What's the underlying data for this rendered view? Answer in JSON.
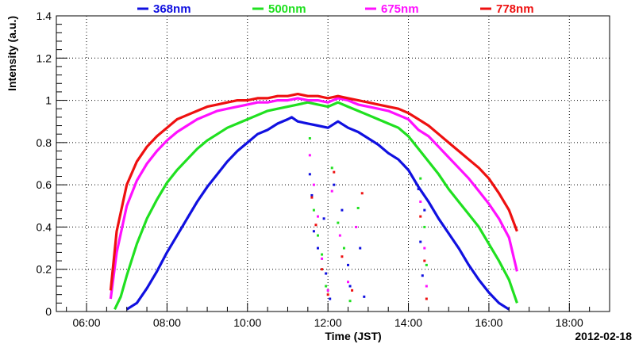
{
  "chart_data": {
    "type": "line",
    "title": "",
    "xlabel": "Time (JST)",
    "ylabel": "Intensity (a.u.)",
    "date_label": "2012-02-18",
    "xlim": [
      5.25,
      19.0
    ],
    "ylim": [
      0,
      1.4
    ],
    "xticks": [
      6,
      8,
      10,
      12,
      14,
      16,
      18
    ],
    "xtick_labels": [
      "06:00",
      "08:00",
      "10:00",
      "12:00",
      "14:00",
      "16:00",
      "18:00"
    ],
    "yticks": [
      0,
      0.2,
      0.4,
      0.6,
      0.8,
      1,
      1.2,
      1.4
    ],
    "ytick_labels": [
      "0",
      "0.2",
      "0.4",
      "0.6",
      "0.8",
      "1",
      "1.2",
      "1.4"
    ],
    "grid": true,
    "legend_position": "top",
    "series": [
      {
        "name": "368nm",
        "color": "#1010e0",
        "x": [
          7.0,
          7.25,
          7.5,
          7.75,
          8.0,
          8.25,
          8.5,
          8.75,
          9.0,
          9.25,
          9.5,
          9.75,
          10.0,
          10.25,
          10.5,
          10.75,
          11.0,
          11.1,
          11.25,
          11.5,
          11.75,
          12.0,
          12.25,
          12.5,
          12.75,
          13.0,
          13.25,
          13.5,
          13.75,
          14.0,
          14.25,
          14.5,
          14.75,
          15.0,
          15.25,
          15.5,
          15.75,
          16.0,
          16.25,
          16.5
        ],
        "y": [
          0.01,
          0.04,
          0.11,
          0.19,
          0.28,
          0.36,
          0.44,
          0.52,
          0.59,
          0.65,
          0.71,
          0.76,
          0.8,
          0.84,
          0.86,
          0.89,
          0.91,
          0.92,
          0.9,
          0.89,
          0.88,
          0.87,
          0.9,
          0.87,
          0.85,
          0.82,
          0.79,
          0.75,
          0.72,
          0.67,
          0.59,
          0.52,
          0.44,
          0.37,
          0.3,
          0.22,
          0.15,
          0.09,
          0.04,
          0.01
        ]
      },
      {
        "name": "500nm",
        "color": "#20e020",
        "x": [
          6.7,
          6.85,
          7.0,
          7.25,
          7.5,
          7.75,
          8.0,
          8.25,
          8.5,
          8.75,
          9.0,
          9.25,
          9.5,
          9.75,
          10.0,
          10.25,
          10.5,
          10.75,
          11.0,
          11.25,
          11.5,
          11.75,
          12.0,
          12.25,
          12.5,
          12.75,
          13.0,
          13.25,
          13.5,
          13.75,
          14.0,
          14.25,
          14.5,
          14.75,
          15.0,
          15.25,
          15.5,
          15.75,
          16.0,
          16.25,
          16.5,
          16.7
        ],
        "y": [
          0.01,
          0.07,
          0.17,
          0.32,
          0.44,
          0.53,
          0.61,
          0.67,
          0.72,
          0.77,
          0.81,
          0.84,
          0.87,
          0.89,
          0.91,
          0.93,
          0.95,
          0.96,
          0.97,
          0.98,
          0.99,
          0.98,
          0.97,
          0.99,
          0.97,
          0.95,
          0.93,
          0.91,
          0.89,
          0.87,
          0.83,
          0.77,
          0.71,
          0.65,
          0.58,
          0.52,
          0.46,
          0.4,
          0.32,
          0.24,
          0.15,
          0.04
        ]
      },
      {
        "name": "675nm",
        "color": "#ff10ff",
        "x": [
          6.6,
          6.75,
          7.0,
          7.25,
          7.5,
          7.75,
          8.0,
          8.25,
          8.5,
          8.75,
          9.0,
          9.25,
          9.5,
          9.75,
          10.0,
          10.25,
          10.5,
          10.75,
          11.0,
          11.25,
          11.5,
          11.75,
          12.0,
          12.25,
          12.5,
          12.75,
          13.0,
          13.25,
          13.5,
          13.75,
          14.0,
          14.25,
          14.5,
          14.75,
          15.0,
          15.25,
          15.5,
          15.75,
          16.0,
          16.25,
          16.5,
          16.7
        ],
        "y": [
          0.06,
          0.28,
          0.5,
          0.62,
          0.7,
          0.76,
          0.81,
          0.85,
          0.88,
          0.91,
          0.93,
          0.95,
          0.96,
          0.97,
          0.98,
          0.99,
          0.99,
          1.0,
          1.0,
          1.01,
          1.0,
          1.0,
          0.99,
          1.01,
          1.0,
          0.98,
          0.97,
          0.96,
          0.95,
          0.93,
          0.91,
          0.86,
          0.83,
          0.78,
          0.73,
          0.68,
          0.63,
          0.57,
          0.51,
          0.44,
          0.35,
          0.19
        ]
      },
      {
        "name": "778nm",
        "color": "#ee1010",
        "x": [
          6.6,
          6.75,
          7.0,
          7.25,
          7.5,
          7.75,
          8.0,
          8.25,
          8.5,
          8.75,
          9.0,
          9.25,
          9.5,
          9.75,
          10.0,
          10.25,
          10.5,
          10.75,
          11.0,
          11.25,
          11.5,
          11.75,
          12.0,
          12.25,
          12.5,
          12.75,
          13.0,
          13.25,
          13.5,
          13.75,
          14.0,
          14.25,
          14.5,
          14.75,
          15.0,
          15.25,
          15.5,
          15.75,
          16.0,
          16.25,
          16.5,
          16.7
        ],
        "y": [
          0.1,
          0.38,
          0.6,
          0.71,
          0.78,
          0.83,
          0.87,
          0.91,
          0.93,
          0.95,
          0.97,
          0.98,
          0.99,
          1.0,
          1.0,
          1.01,
          1.01,
          1.02,
          1.02,
          1.03,
          1.02,
          1.02,
          1.01,
          1.02,
          1.01,
          1.0,
          0.99,
          0.98,
          0.97,
          0.96,
          0.94,
          0.91,
          0.88,
          0.84,
          0.8,
          0.76,
          0.72,
          0.68,
          0.63,
          0.56,
          0.48,
          0.38
        ]
      }
    ],
    "scatter_dropouts": {
      "368nm": [
        [
          11.55,
          0.65
        ],
        [
          11.6,
          0.55
        ],
        [
          11.65,
          0.38
        ],
        [
          11.75,
          0.3
        ],
        [
          11.9,
          0.44
        ],
        [
          11.95,
          0.18
        ],
        [
          12.05,
          0.06
        ],
        [
          12.15,
          0.6
        ],
        [
          12.35,
          0.48
        ],
        [
          12.5,
          0.22
        ],
        [
          12.55,
          0.12
        ],
        [
          12.8,
          0.3
        ],
        [
          12.9,
          0.07
        ],
        [
          14.25,
          0.58
        ],
        [
          14.3,
          0.33
        ],
        [
          14.35,
          0.17
        ],
        [
          14.4,
          0.48
        ]
      ],
      "500nm": [
        [
          11.55,
          0.82
        ],
        [
          11.65,
          0.48
        ],
        [
          11.75,
          0.36
        ],
        [
          11.85,
          0.27
        ],
        [
          11.95,
          0.12
        ],
        [
          12.1,
          0.68
        ],
        [
          12.25,
          0.42
        ],
        [
          12.4,
          0.3
        ],
        [
          12.55,
          0.05
        ],
        [
          12.75,
          0.49
        ],
        [
          14.3,
          0.63
        ],
        [
          14.4,
          0.4
        ],
        [
          14.45,
          0.22
        ]
      ],
      "675nm": [
        [
          11.55,
          0.74
        ],
        [
          11.65,
          0.6
        ],
        [
          11.75,
          0.45
        ],
        [
          11.85,
          0.25
        ],
        [
          12.0,
          0.1
        ],
        [
          12.1,
          0.57
        ],
        [
          12.3,
          0.36
        ],
        [
          12.5,
          0.14
        ],
        [
          12.7,
          0.4
        ],
        [
          14.3,
          0.52
        ],
        [
          14.4,
          0.3
        ],
        [
          14.45,
          0.12
        ]
      ],
      "778nm": [
        [
          11.6,
          0.54
        ],
        [
          11.7,
          0.41
        ],
        [
          11.85,
          0.2
        ],
        [
          12.0,
          0.08
        ],
        [
          12.15,
          0.66
        ],
        [
          12.35,
          0.26
        ],
        [
          12.6,
          0.1
        ],
        [
          12.85,
          0.56
        ],
        [
          14.3,
          0.45
        ],
        [
          14.4,
          0.24
        ],
        [
          14.45,
          0.06
        ]
      ]
    }
  }
}
